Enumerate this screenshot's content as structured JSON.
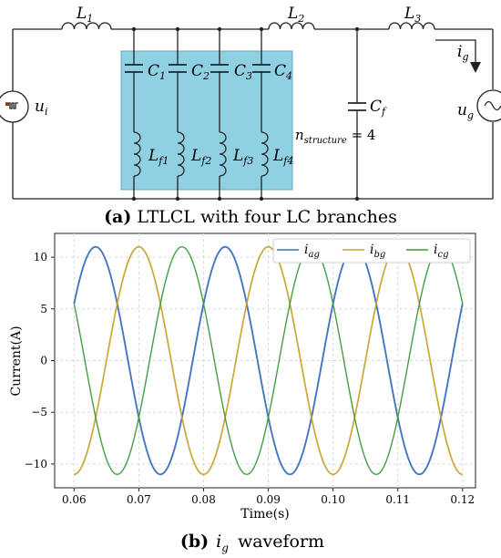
{
  "circuit": {
    "labels": {
      "L1": "L1",
      "L2": "L2",
      "L3": "L3",
      "C1": "C1",
      "C2": "C2",
      "C3": "C3",
      "C4": "C4",
      "Lf1": "Lf1",
      "Lf2": "Lf2",
      "Lf3": "Lf3",
      "Lf4": "Lf4",
      "Cf": "Cf",
      "ui": "ui",
      "ug": "ug",
      "ig": "ig",
      "n_structure": "nstructure = 4"
    },
    "caption_a": {
      "bold": "(a)",
      "text": " LTLCL with four LC branches"
    }
  },
  "chart_data": {
    "type": "line",
    "title": "",
    "xlabel": "Time(s)",
    "ylabel": "Current(A)",
    "xlim": [
      0.057,
      0.122
    ],
    "ylim": [
      -12.3,
      12.3
    ],
    "xticks": [
      0.06,
      0.07,
      0.08,
      0.09,
      0.1,
      0.11,
      0.12
    ],
    "xtick_labels": [
      "0.06",
      "0.07",
      "0.08",
      "0.09",
      "0.10",
      "0.11",
      "0.12"
    ],
    "yticks": [
      10,
      5,
      0,
      -5,
      -10
    ],
    "ytick_labels": [
      "10",
      "5",
      "0",
      "−5",
      "−10"
    ],
    "grid": true,
    "legend": "top-right",
    "amplitude": 11.0,
    "frequency_hz": 50,
    "x_start": 0.06,
    "x_end": 0.12,
    "series": [
      {
        "name": "iag",
        "phase_deg": 30,
        "color": "#3a6fbf",
        "ripple": 0.35
      },
      {
        "name": "ibg",
        "phase_deg": -90,
        "color": "#c9a227",
        "ripple": 0.25
      },
      {
        "name": "icg",
        "phase_deg": 150,
        "color": "#3a9a3a",
        "ripple": 0.1
      }
    ]
  },
  "caption_b": {
    "bold": "(b)",
    "var": "ig",
    "text": "waveform"
  }
}
